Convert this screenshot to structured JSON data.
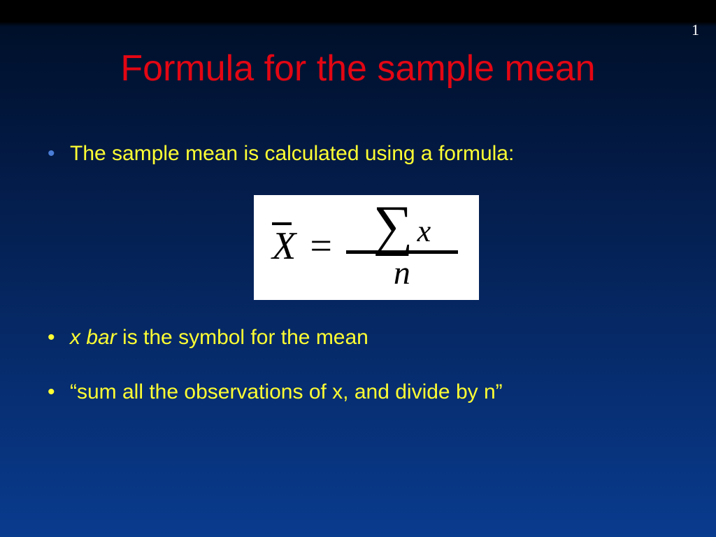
{
  "slide": {
    "number": "1",
    "title": "Formula for the sample mean",
    "title_color": "#e30613",
    "bullet_text_color": "#ffff33",
    "bullets": [
      {
        "text": "The sample mean is calculated using a formula:",
        "marker_color": "blue"
      },
      {
        "xbar_prefix": "x bar",
        "rest": " is the symbol for the mean",
        "marker_color": "yellow"
      },
      {
        "text": "“sum all the observations of x, and divide by n”",
        "marker_color": "yellow"
      }
    ],
    "formula": {
      "lhs": "X",
      "equals": "=",
      "sigma": "∑",
      "numerator_var": "x",
      "denominator": "n",
      "box_bg": "#ffffff",
      "font_family": "Times New Roman"
    },
    "background": {
      "top": "#000000",
      "bottom": "#093b8e"
    }
  }
}
